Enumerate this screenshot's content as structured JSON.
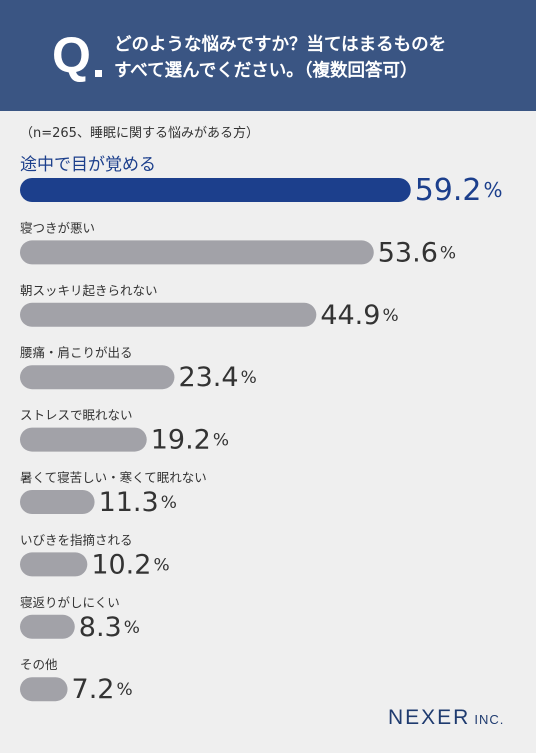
{
  "question": {
    "mark": "Q",
    "line1": "どのような悩みですか？当てはまるものを",
    "line2": "すべて選んでください。（複数回答可）"
  },
  "note": "（n=265、睡眠に関する悩みがある方）",
  "chart_data": {
    "type": "bar",
    "orientation": "horizontal",
    "categories": [
      "途中で目が覚める",
      "寝つきが悪い",
      "朝スッキリ起きられない",
      "腰痛・肩こりが出る",
      "ストレスで眠れない",
      "暑くて寝苦しい・寒くて眠れない",
      "いびきを指摘される",
      "寝返りがしにくい",
      "その他"
    ],
    "values": [
      59.2,
      53.6,
      44.9,
      23.4,
      19.2,
      11.3,
      10.2,
      8.3,
      7.2
    ],
    "value_labels": [
      "59.2",
      "53.6",
      "44.9",
      "23.4",
      "19.2",
      "11.3",
      "10.2",
      "8.3",
      "7.2"
    ],
    "unit": "%",
    "highlight_index": 0,
    "colors": {
      "highlight": "#1c3f8c",
      "default": "#a2a2a8",
      "highlight_label": "#1c3f8c",
      "default_label": "#333333"
    }
  },
  "logo": {
    "name": "NEXER",
    "suffix": "INC."
  }
}
